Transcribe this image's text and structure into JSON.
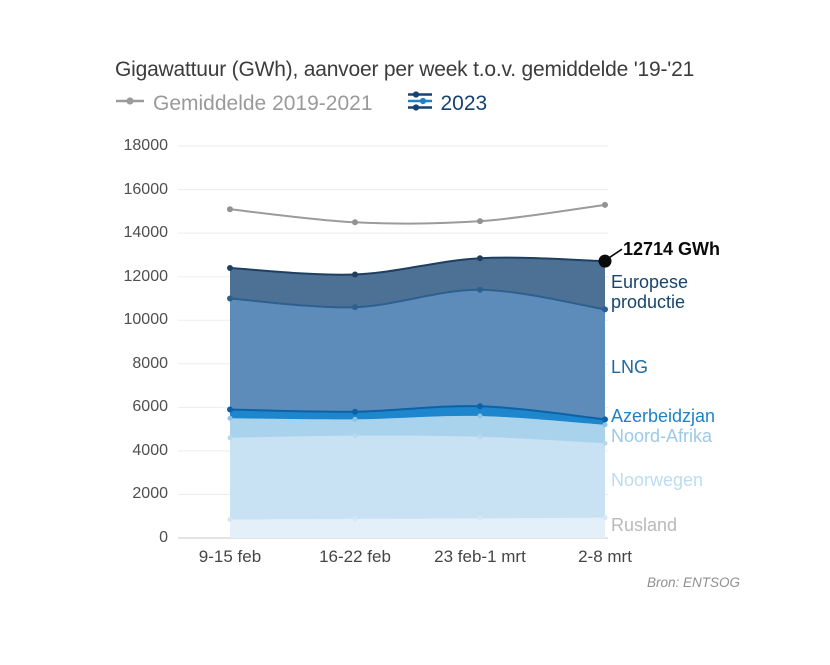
{
  "header": {
    "title": "Gigawattuur (GWh), aanvoer per week t.o.v. gemiddelde '19-'21"
  },
  "legend": {
    "items": [
      {
        "label": "Gemiddelde 2019-2021",
        "icon": "gray-line-with-dot",
        "color": "#9b9b9b"
      },
      {
        "label": "2023",
        "icon": "stacked-lines-with-dots",
        "color": "#154273"
      }
    ]
  },
  "source": "Bron: ENTSOG",
  "colors": {
    "average_line": "#9b9b9b",
    "year_navy": "#154273",
    "year_blue": "#1e83c6",
    "grid": "#ededed",
    "zero_line": "#c9c9c9",
    "annotation_dot": "#0b0b0b"
  },
  "chart_data": {
    "type": "area",
    "stacked": true,
    "title": "Gigawattuur (GWh), aanvoer per week t.o.v. gemiddelde '19-'21",
    "categories": [
      "9-15 feb",
      "16-22 feb",
      "23 feb-1 mrt",
      "2-8 mrt"
    ],
    "unit": "GWh",
    "ylim": [
      0,
      18000
    ],
    "ytick_step": 2000,
    "yticks": [
      0,
      2000,
      4000,
      6000,
      8000,
      10000,
      12000,
      14000,
      16000,
      18000
    ],
    "grid": true,
    "legend_position": "top",
    "series": [
      {
        "name": "Rusland",
        "values": [
          850,
          870,
          900,
          930
        ],
        "color": "#e3f0f9",
        "dot_color": "#d5e8f5",
        "label_color": "#b9b9b9"
      },
      {
        "name": "Noorwegen",
        "values": [
          3750,
          3830,
          3750,
          3420
        ],
        "color": "#c9e2f3",
        "dot_color": "#b7d8ee",
        "label_color": "#bddcf0"
      },
      {
        "name": "Noord-Afrika",
        "values": [
          900,
          750,
          950,
          850
        ],
        "color": "#a9d3ec",
        "dot_color": "#8fc2e4",
        "label_color": "#9cc9e7"
      },
      {
        "name": "Azerbeidzjan",
        "values": [
          400,
          350,
          450,
          250
        ],
        "color": "#1e86cd",
        "stroke": "#0d62a7",
        "dot_color": "#0d62a7",
        "label_color": "#1e83c6"
      },
      {
        "name": "LNG",
        "values": [
          5100,
          4800,
          5350,
          5050
        ],
        "color": "#5e8cba",
        "stroke": "#2d608f",
        "dot_color": "#2d608f",
        "label_color": "#1d6a9e"
      },
      {
        "name": "Europese productie",
        "values": [
          1400,
          1500,
          1450,
          2214
        ],
        "color": "#4d7195",
        "stroke": "#1e3f62",
        "dot_color": "#1e3f62",
        "label_color": "#17456e"
      }
    ],
    "totals_2023": [
      12400,
      12100,
      12850,
      12714
    ],
    "line_series": {
      "name": "Gemiddelde 2019-2021",
      "values": [
        15100,
        14500,
        14550,
        15300
      ],
      "color": "#9b9b9b"
    },
    "annotation": {
      "text": "12714 GWh",
      "value": 12714,
      "category": "2-8 mrt"
    }
  }
}
